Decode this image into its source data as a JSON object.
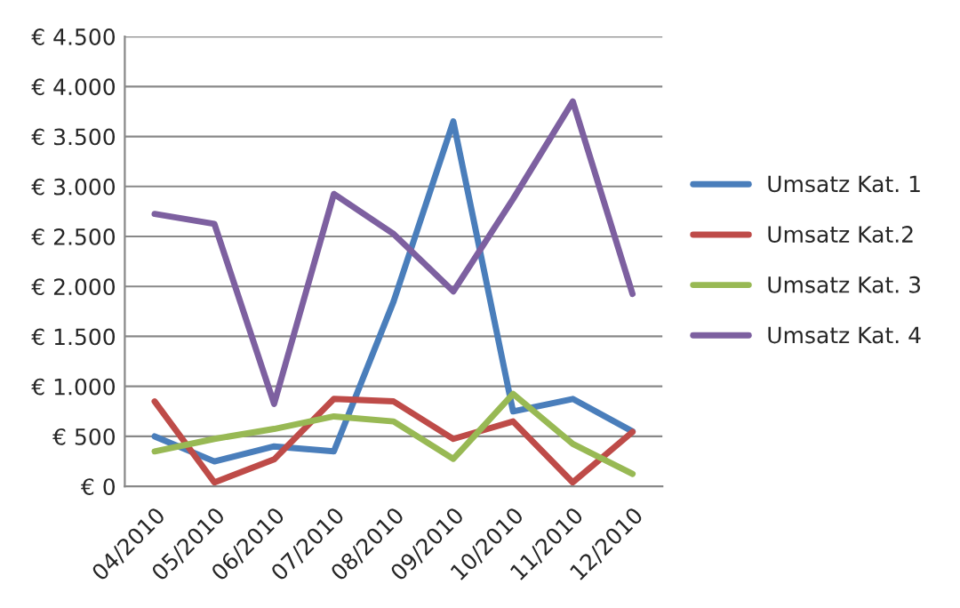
{
  "chart_data": {
    "type": "line",
    "categories": [
      "04/2010",
      "05/2010",
      "06/2010",
      "07/2010",
      "08/2010",
      "09/2010",
      "10/2010",
      "11/2010",
      "12/2010"
    ],
    "series": [
      {
        "name": "Umsatz Kat. 1",
        "color": "#4a7ebb",
        "values": [
          500,
          250,
          400,
          350,
          1850,
          3650,
          750,
          875,
          550
        ]
      },
      {
        "name": "Umsatz Kat.2",
        "color": "#be4b48",
        "values": [
          850,
          40,
          270,
          875,
          850,
          475,
          650,
          40,
          545
        ]
      },
      {
        "name": "Umsatz Kat. 3",
        "color": "#98b954",
        "values": [
          350,
          475,
          575,
          700,
          650,
          275,
          925,
          425,
          125
        ]
      },
      {
        "name": "Umsatz Kat. 4",
        "color": "#7d60a0",
        "values": [
          2725,
          2625,
          825,
          2925,
          2525,
          1950,
          2875,
          3850,
          1925
        ]
      }
    ],
    "ylim": [
      0,
      4500
    ],
    "yticks": [
      {
        "value": 0,
        "label": "€ 0"
      },
      {
        "value": 500,
        "label": "€ 500"
      },
      {
        "value": 1000,
        "label": "€ 1.000"
      },
      {
        "value": 1500,
        "label": "€ 1.500"
      },
      {
        "value": 2000,
        "label": "€ 2.000"
      },
      {
        "value": 2500,
        "label": "€ 2.500"
      },
      {
        "value": 3000,
        "label": "€ 3.000"
      },
      {
        "value": 3500,
        "label": "€ 3.500"
      },
      {
        "value": 4000,
        "label": "€ 4.000"
      },
      {
        "value": 4500,
        "label": "€ 4.500"
      }
    ],
    "grid": "y",
    "legend": "right",
    "marker": "none",
    "line_style": "solid"
  }
}
